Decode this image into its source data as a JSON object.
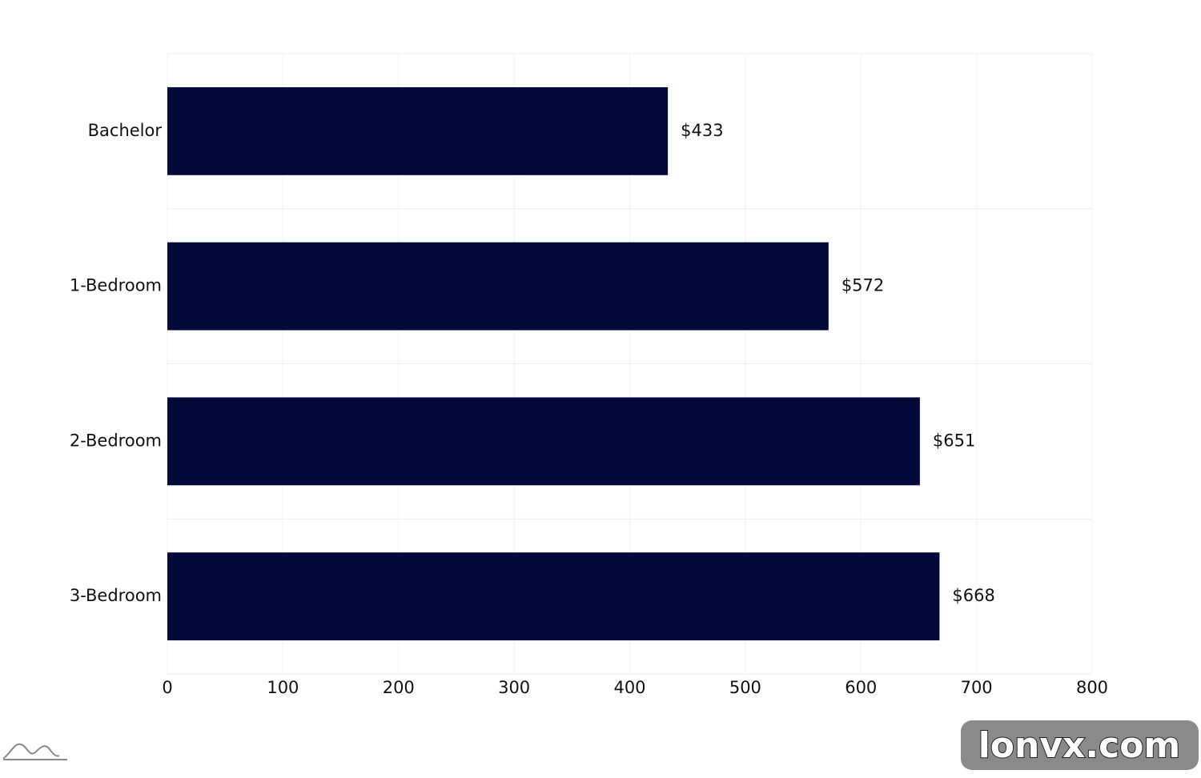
{
  "chart_data": {
    "type": "bar",
    "orientation": "horizontal",
    "categories": [
      "Bachelor",
      "1-Bedroom",
      "2-Bedroom",
      "3-Bedroom"
    ],
    "values": [
      433,
      572,
      651,
      668
    ],
    "value_labels": [
      "$433",
      "$572",
      "$651",
      "$668"
    ],
    "color": "#030a3a",
    "xlim": [
      0,
      800
    ],
    "xticks": [
      0,
      100,
      200,
      300,
      400,
      500,
      600,
      700,
      800
    ],
    "grid": true
  },
  "watermark": "lonvx.com"
}
